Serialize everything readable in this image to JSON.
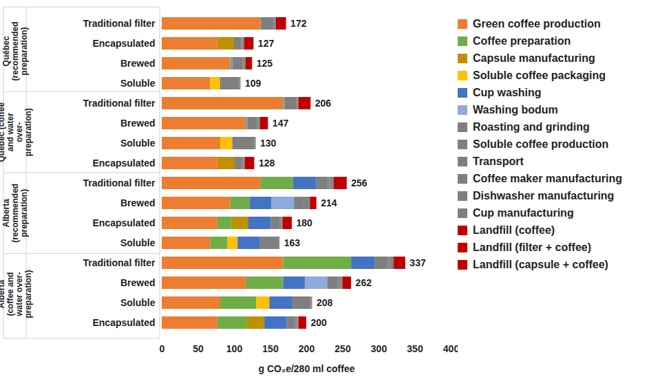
{
  "chart_data": {
    "type": "bar",
    "orientation": "horizontal",
    "stacked": true,
    "x_label": "g CO₂e/280 ml coffee",
    "xlim": [
      0,
      400
    ],
    "xticks": [
      0,
      50,
      100,
      150,
      200,
      250,
      300,
      350,
      400
    ],
    "categories": [
      "Traditional filter",
      "Encapsulated",
      "Brewed",
      "Soluble",
      "Traditional filter",
      "Brewed",
      "Soluble",
      "Encapsulated",
      "Traditional filter",
      "Brewed",
      "Encapsulated",
      "Soluble",
      "Traditional filter",
      "Brewed",
      "Soluble",
      "Encapsulated"
    ],
    "groups": [
      "Québec (recommended preparation)",
      "Québec (recommended preparation)",
      "Québec (recommended preparation)",
      "Québec (recommended preparation)",
      "Québec (coffee and water over-preparation)",
      "Québec (coffee and water over-preparation)",
      "Québec (coffee and water over-preparation)",
      "Québec (coffee and water over-preparation)",
      "Alberta (recommended preparation)",
      "Alberta (recommended preparation)",
      "Alberta (recommended preparation)",
      "Alberta (recommended preparation)",
      "Alberta (coffee and water over-preparation)",
      "Alberta (coffee and water over-preparation)",
      "Alberta (coffee and water over-preparation)",
      "Alberta (coffee and water over-preparation)"
    ],
    "totals": [
      172,
      127,
      125,
      109,
      206,
      147,
      130,
      128,
      256,
      214,
      180,
      163,
      337,
      262,
      208,
      200
    ],
    "series": [
      {
        "name": "Green coffee production",
        "color": "#ed7d31",
        "values": [
          137,
          77,
          95,
          67,
          168,
          116,
          81,
          77,
          137,
          95,
          77,
          67,
          168,
          116,
          81,
          77
        ]
      },
      {
        "name": "Coffee preparation",
        "color": "#70ad47",
        "values": [
          1,
          0,
          1,
          0,
          1,
          1,
          0,
          0,
          45,
          27,
          20,
          24,
          94,
          52,
          50,
          41
        ]
      },
      {
        "name": "Capsule manufacturing",
        "color": "#bf9000",
        "values": [
          0,
          23,
          0,
          0,
          0,
          0,
          0,
          24,
          0,
          0,
          23,
          0,
          0,
          0,
          0,
          24
        ]
      },
      {
        "name": "Soluble coffee packaging",
        "color": "#ffc000",
        "values": [
          0,
          0,
          0,
          14,
          0,
          0,
          17,
          0,
          0,
          0,
          0,
          14,
          0,
          0,
          18,
          0
        ]
      },
      {
        "name": "Cup washing",
        "color": "#4472c4",
        "values": [
          1,
          0,
          1,
          1,
          1,
          1,
          1,
          0,
          32,
          30,
          31,
          31,
          33,
          30,
          31,
          31
        ]
      },
      {
        "name": "Washing bodum",
        "color": "#8faadc",
        "values": [
          0,
          0,
          1,
          0,
          0,
          1,
          0,
          0,
          0,
          31,
          0,
          0,
          0,
          31,
          0,
          0
        ]
      },
      {
        "name": "Roasting and grinding",
        "color": "#7f7f7f",
        "values": [
          16,
          10,
          14,
          0,
          16,
          13,
          0,
          10,
          16,
          14,
          10,
          0,
          18,
          13,
          0,
          10
        ]
      },
      {
        "name": "Soluble coffee production",
        "color": "#7f7f7f",
        "values": [
          0,
          0,
          0,
          25,
          0,
          0,
          29,
          0,
          0,
          0,
          0,
          23,
          0,
          0,
          25,
          0
        ]
      },
      {
        "name": "Transport",
        "color": "#7f7f7f",
        "values": [
          2,
          2,
          2,
          2,
          2,
          2,
          2,
          2,
          2,
          2,
          2,
          2,
          2,
          2,
          2,
          2
        ]
      },
      {
        "name": "Coffee maker manufacturing",
        "color": "#7f7f7f",
        "values": [
          1,
          2,
          2,
          0,
          1,
          2,
          0,
          2,
          2,
          2,
          2,
          0,
          2,
          2,
          0,
          2
        ]
      },
      {
        "name": "Dishwasher manufacturing",
        "color": "#7f7f7f",
        "values": [
          0,
          0,
          0,
          0,
          0,
          0,
          0,
          0,
          2,
          2,
          1,
          1,
          2,
          2,
          1,
          1
        ]
      },
      {
        "name": "Cup manufacturing",
        "color": "#7f7f7f",
        "values": [
          0,
          0,
          0,
          0,
          0,
          0,
          0,
          0,
          2,
          2,
          1,
          1,
          2,
          2,
          0,
          1
        ]
      },
      {
        "name": "Landfill (coffee)",
        "color": "#c00000",
        "values": [
          0,
          0,
          9,
          0,
          0,
          11,
          0,
          0,
          0,
          9,
          0,
          0,
          0,
          12,
          0,
          0
        ]
      },
      {
        "name": "Landfill (filter + coffee)",
        "color": "#c00000",
        "values": [
          14,
          0,
          0,
          0,
          17,
          0,
          0,
          0,
          18,
          0,
          0,
          0,
          16,
          0,
          0,
          0
        ]
      },
      {
        "name": "Landfill (capsule + coffee)",
        "color": "#c00000",
        "values": [
          0,
          13,
          0,
          0,
          0,
          0,
          0,
          13,
          0,
          0,
          13,
          0,
          0,
          0,
          0,
          11
        ]
      }
    ]
  }
}
